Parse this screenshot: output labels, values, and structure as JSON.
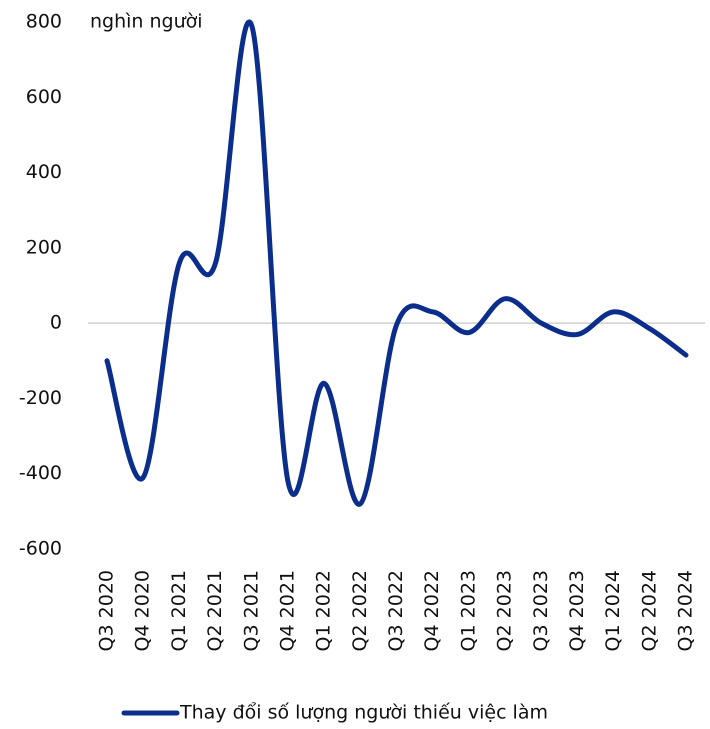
{
  "chart_data": {
    "type": "line",
    "unit_label": "nghìn người",
    "categories": [
      "Q3 2020",
      "Q4 2020",
      "Q1 2021",
      "Q2 2021",
      "Q3 2021",
      "Q4 2021",
      "Q1 2022",
      "Q2 2022",
      "Q3 2022",
      "Q4 2022",
      "Q1 2023",
      "Q2 2023",
      "Q3 2023",
      "Q4 2023",
      "Q1 2024",
      "Q2 2024",
      "Q3 2024"
    ],
    "series": [
      {
        "name": "Thay đổi số lượng người thiếu việc làm",
        "color": "#0b2d8c",
        "values": [
          -100,
          -410,
          160,
          160,
          790,
          -420,
          -160,
          -480,
          -5,
          30,
          -25,
          65,
          0,
          -30,
          30,
          -15,
          -85
        ]
      }
    ],
    "ylim": [
      -600,
      800
    ],
    "yticks": [
      -600,
      -400,
      -200,
      0,
      200,
      400,
      600,
      800
    ],
    "zero_line": true,
    "smooth": true,
    "legend": "bottom"
  }
}
